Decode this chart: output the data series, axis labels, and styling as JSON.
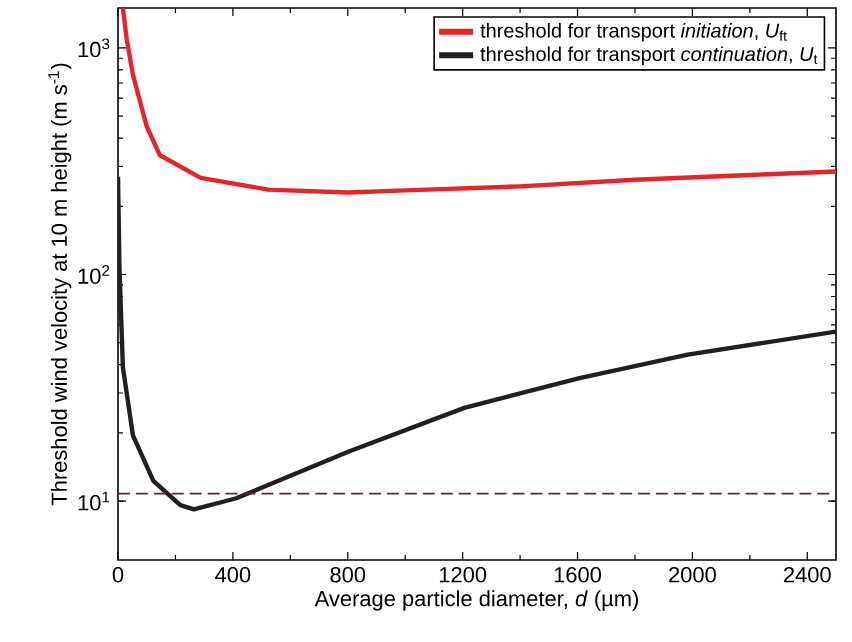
{
  "chart_data": {
    "type": "line",
    "xlabel": "Average particle diameter, *d* (µm)",
    "ylabel": "Threshold wind velocity at 10 m height (m s$^{-1}$)",
    "x": [
      17,
      30,
      52,
      100,
      146,
      288,
      523,
      800,
      1000,
      1400,
      1800,
      2200,
      2500
    ],
    "series": [
      {
        "name": "threshold for transport *initiation*, *U*$_{ft}$",
        "color": "#e8232a",
        "values": [
          1500,
          1100,
          760,
          450,
          336,
          267,
          237,
          230,
          235,
          245,
          262,
          275,
          285
        ]
      },
      {
        "name": "threshold for transport *continuation*, *U*$_{t}$",
        "color": "#231f20",
        "x": [
          0,
          5,
          17,
          52,
          123,
          217,
          264,
          412,
          806,
          1206,
          1607,
          1984,
          2500
        ],
        "values": [
          270,
          107,
          39,
          19.5,
          12.3,
          9.6,
          9.2,
          10.3,
          16.6,
          25.8,
          34.9,
          44.3,
          56
        ]
      }
    ],
    "ref_lines": [
      {
        "axis": "y",
        "value": 10.8,
        "color": "#6b1a4f",
        "line_style": "dashed"
      }
    ],
    "log": "y",
    "xlim": [
      0,
      2500
    ],
    "ylim": [
      5.5,
      1500
    ],
    "xticks": [
      0,
      400,
      800,
      1200,
      1600,
      2000,
      2400
    ],
    "yticks": [
      {
        "value": 10,
        "label": "10$^{1}$"
      },
      {
        "value": 100,
        "label": "10$^{2}$"
      },
      {
        "value": 1000,
        "label": "10$^{3}$"
      }
    ],
    "legend": "top right",
    "marker": "none"
  }
}
